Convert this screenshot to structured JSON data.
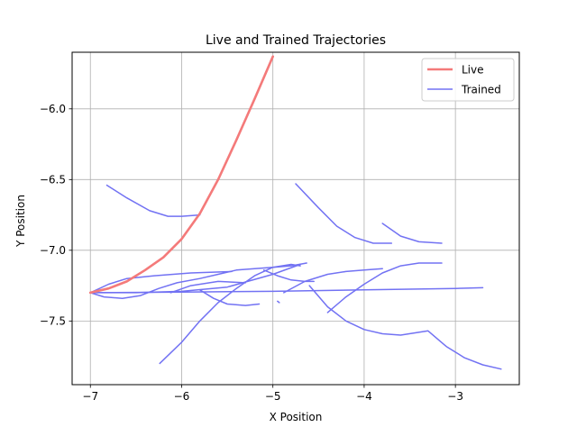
{
  "chart_data": {
    "type": "line",
    "title": "Live and Trained Trajectories",
    "xlabel": "X Position",
    "ylabel": "Y Position",
    "xlim": [
      -7.2,
      -2.3
    ],
    "ylim": [
      -7.95,
      -5.6
    ],
    "xticks": [
      -7,
      -6,
      -5,
      -4,
      -3
    ],
    "xtick_labels": [
      "−7",
      "−6",
      "−5",
      "−4",
      "−3"
    ],
    "yticks": [
      -6.0,
      -6.5,
      -7.0,
      -7.5
    ],
    "ytick_labels": [
      "−6.0",
      "−6.5",
      "−7.0",
      "−7.5"
    ],
    "grid": true,
    "legend_position": "top-right",
    "colors": {
      "live": "#f47a7a",
      "trained": "#7272f3"
    },
    "legend": [
      {
        "label": "Live",
        "color": "#f47a7a"
      },
      {
        "label": "Trained",
        "color": "#7272f3"
      }
    ],
    "live": {
      "name": "Live",
      "x": [
        -7.0,
        -6.8,
        -6.6,
        -6.4,
        -6.2,
        -6.0,
        -5.8,
        -5.6,
        -5.4,
        -5.2,
        -5.0
      ],
      "y": [
        -7.3,
        -7.27,
        -7.22,
        -7.14,
        -7.05,
        -6.92,
        -6.74,
        -6.5,
        -6.22,
        -5.93,
        -5.63
      ]
    },
    "trained": {
      "name": "Trained",
      "segments": [
        {
          "x": [
            -6.82,
            -6.6,
            -6.35,
            -6.15,
            -6.0,
            -5.8
          ],
          "y": [
            -6.54,
            -6.63,
            -6.72,
            -6.76,
            -6.76,
            -6.75
          ]
        },
        {
          "x": [
            -4.75,
            -4.5,
            -4.3,
            -4.1,
            -3.9,
            -3.7
          ],
          "y": [
            -6.53,
            -6.7,
            -6.83,
            -6.91,
            -6.95,
            -6.95
          ]
        },
        {
          "x": [
            -3.8,
            -3.6,
            -3.4,
            -3.15
          ],
          "y": [
            -6.81,
            -6.9,
            -6.94,
            -6.95
          ]
        },
        {
          "x": [
            -7.0,
            -6.8,
            -6.6,
            -6.3,
            -5.9,
            -5.45
          ],
          "y": [
            -7.3,
            -7.24,
            -7.2,
            -7.18,
            -7.16,
            -7.15
          ]
        },
        {
          "x": [
            -7.0,
            -6.85,
            -6.65,
            -6.45,
            -6.25,
            -6.05,
            -5.8,
            -5.6,
            -5.4,
            -5.2,
            -5.0,
            -4.8,
            -4.63
          ],
          "y": [
            -7.3,
            -7.33,
            -7.34,
            -7.32,
            -7.27,
            -7.23,
            -7.2,
            -7.17,
            -7.14,
            -7.13,
            -7.12,
            -7.11,
            -7.09
          ]
        },
        {
          "x": [
            -7.0,
            -6.0,
            -5.0,
            -4.0,
            -3.0,
            -2.7
          ],
          "y": [
            -7.3,
            -7.295,
            -7.29,
            -7.28,
            -7.27,
            -7.265
          ]
        },
        {
          "x": [
            -7.0,
            -6.5,
            -6.0,
            -5.5,
            -5.0,
            -4.7
          ],
          "y": [
            -7.3,
            -7.3,
            -7.29,
            -7.26,
            -7.17,
            -7.1
          ]
        },
        {
          "x": [
            -6.12,
            -5.9,
            -5.6,
            -5.3
          ],
          "y": [
            -7.3,
            -7.25,
            -7.22,
            -7.23
          ]
        },
        {
          "x": [
            -5.8,
            -5.65,
            -5.5,
            -5.3,
            -5.15
          ],
          "y": [
            -7.28,
            -7.34,
            -7.38,
            -7.39,
            -7.38
          ]
        },
        {
          "x": [
            -6.24,
            -6.0,
            -5.8,
            -5.6,
            -5.4,
            -5.2,
            -5.0,
            -4.8,
            -4.7
          ],
          "y": [
            -7.8,
            -7.65,
            -7.5,
            -7.37,
            -7.27,
            -7.18,
            -7.12,
            -7.1,
            -7.11
          ]
        },
        {
          "x": [
            -4.95,
            -4.93
          ],
          "y": [
            -7.36,
            -7.37
          ]
        },
        {
          "x": [
            -5.1,
            -4.95,
            -4.8,
            -4.65,
            -4.55
          ],
          "y": [
            -7.14,
            -7.18,
            -7.21,
            -7.22,
            -7.22
          ]
        },
        {
          "x": [
            -4.88,
            -4.65,
            -4.4,
            -4.2,
            -4.0,
            -3.8
          ],
          "y": [
            -7.3,
            -7.22,
            -7.17,
            -7.15,
            -7.14,
            -7.13
          ]
        },
        {
          "x": [
            -4.4,
            -4.2,
            -4.0,
            -3.8,
            -3.6,
            -3.4,
            -3.2,
            -3.15
          ],
          "y": [
            -7.44,
            -7.33,
            -7.24,
            -7.16,
            -7.11,
            -7.09,
            -7.09,
            -7.09
          ]
        },
        {
          "x": [
            -4.6,
            -4.4,
            -4.2,
            -4.0,
            -3.8,
            -3.6,
            -3.3,
            -3.1,
            -2.9,
            -2.7,
            -2.5
          ],
          "y": [
            -7.25,
            -7.4,
            -7.5,
            -7.56,
            -7.59,
            -7.6,
            -7.57,
            -7.68,
            -7.76,
            -7.81,
            -7.84
          ]
        }
      ]
    }
  }
}
